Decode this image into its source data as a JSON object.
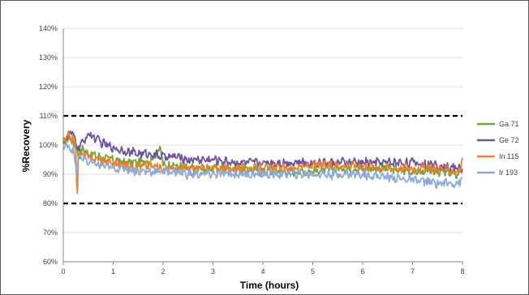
{
  "chart_data": {
    "type": "line",
    "xlabel": "Time (hours)",
    "ylabel": "%Recovery",
    "xlim": [
      0,
      8
    ],
    "ylim": [
      60,
      140
    ],
    "x_ticks": [
      "0",
      "1",
      "2",
      "3",
      "4",
      "5",
      "6",
      "7",
      "8"
    ],
    "y_ticks": [
      "60%",
      "70%",
      "80%",
      "90%",
      "100%",
      "110%",
      "120%",
      "130%",
      "140%"
    ],
    "grid": true,
    "legend_position": "right",
    "control_limits": [
      80,
      110
    ],
    "series": [
      {
        "name": "Ga 71",
        "color": "#77a33c",
        "x": [
          0,
          0.1,
          0.2,
          0.27,
          0.3,
          0.4,
          0.5,
          0.75,
          1,
          1.25,
          1.5,
          1.75,
          1.95,
          2,
          2.25,
          2.5,
          3,
          3.5,
          4,
          4.5,
          5,
          5.5,
          6,
          6.5,
          7,
          7.5,
          7.9,
          8
        ],
        "y": [
          100,
          103,
          101,
          99,
          96,
          99,
          97,
          96,
          95,
          94,
          94,
          95,
          99,
          93,
          93,
          92,
          92,
          92,
          91,
          91,
          91,
          92,
          92,
          92,
          91,
          91,
          90,
          92
        ]
      },
      {
        "name": "Ge 72",
        "color": "#6e55a0",
        "x": [
          0,
          0.1,
          0.2,
          0.27,
          0.3,
          0.4,
          0.5,
          0.75,
          1,
          1.25,
          1.5,
          1.75,
          2,
          2.25,
          2.5,
          3,
          3.5,
          4,
          4.5,
          5,
          5.5,
          6,
          6.5,
          7,
          7.5,
          7.9,
          8
        ],
        "y": [
          101,
          103,
          104,
          100,
          99,
          101,
          104,
          101,
          99,
          98,
          97,
          97,
          96,
          96,
          95,
          95,
          94,
          94,
          94,
          94,
          94,
          94,
          94,
          94,
          93,
          92,
          92
        ]
      },
      {
        "name": "In 115",
        "color": "#e8822e",
        "x": [
          0,
          0.1,
          0.2,
          0.25,
          0.28,
          0.3,
          0.4,
          0.5,
          0.75,
          1,
          1.25,
          1.5,
          1.75,
          2,
          2.25,
          2.5,
          3,
          3.5,
          4,
          4.5,
          5,
          5.5,
          6,
          6.5,
          7,
          7.5,
          7.95,
          8
        ],
        "y": [
          101,
          103,
          102,
          99,
          81,
          96,
          97,
          96,
          95,
          94,
          93,
          93,
          93,
          92,
          92,
          92,
          92,
          92,
          92,
          92,
          93,
          93,
          93,
          92,
          92,
          92,
          91,
          96
        ]
      },
      {
        "name": "Ir 193",
        "color": "#8faad6",
        "x": [
          0,
          0.1,
          0.2,
          0.27,
          0.3,
          0.4,
          0.5,
          0.75,
          1,
          1.25,
          1.5,
          1.75,
          2,
          2.25,
          2.5,
          3,
          3.5,
          4,
          4.5,
          5,
          5.5,
          6,
          6.5,
          7,
          7.5,
          7.9,
          8
        ],
        "y": [
          99,
          100,
          98,
          90,
          95,
          96,
          94,
          93,
          92,
          92,
          91,
          91,
          91,
          91,
          90,
          90,
          90,
          90,
          90,
          90,
          90,
          90,
          89,
          88,
          87,
          87,
          88
        ]
      }
    ]
  }
}
